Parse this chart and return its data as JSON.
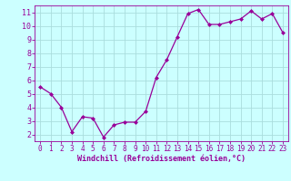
{
  "x": [
    0,
    1,
    2,
    3,
    4,
    5,
    6,
    7,
    8,
    9,
    10,
    11,
    12,
    13,
    14,
    15,
    16,
    17,
    18,
    19,
    20,
    21,
    22,
    23
  ],
  "y": [
    5.5,
    5.0,
    4.0,
    2.2,
    3.3,
    3.2,
    1.8,
    2.7,
    2.9,
    2.9,
    3.7,
    6.2,
    7.5,
    9.2,
    10.9,
    11.2,
    10.1,
    10.1,
    10.3,
    10.5,
    11.1,
    10.5,
    10.9,
    9.5
  ],
  "line_color": "#990099",
  "marker": "D",
  "markersize": 2.0,
  "linewidth": 0.9,
  "bg_color": "#ccffff",
  "grid_color": "#aadddd",
  "xlabel": "Windchill (Refroidissement éolien,°C)",
  "xlabel_color": "#990099",
  "tick_color": "#990099",
  "label_color": "#990099",
  "ylim": [
    1.5,
    11.5
  ],
  "yticks": [
    2,
    3,
    4,
    5,
    6,
    7,
    8,
    9,
    10,
    11
  ],
  "xticks": [
    0,
    1,
    2,
    3,
    4,
    5,
    6,
    7,
    8,
    9,
    10,
    11,
    12,
    13,
    14,
    15,
    16,
    17,
    18,
    19,
    20,
    21,
    22,
    23
  ],
  "xlim": [
    -0.5,
    23.5
  ],
  "tick_fontsize": 5.5,
  "xlabel_fontsize": 6.0
}
